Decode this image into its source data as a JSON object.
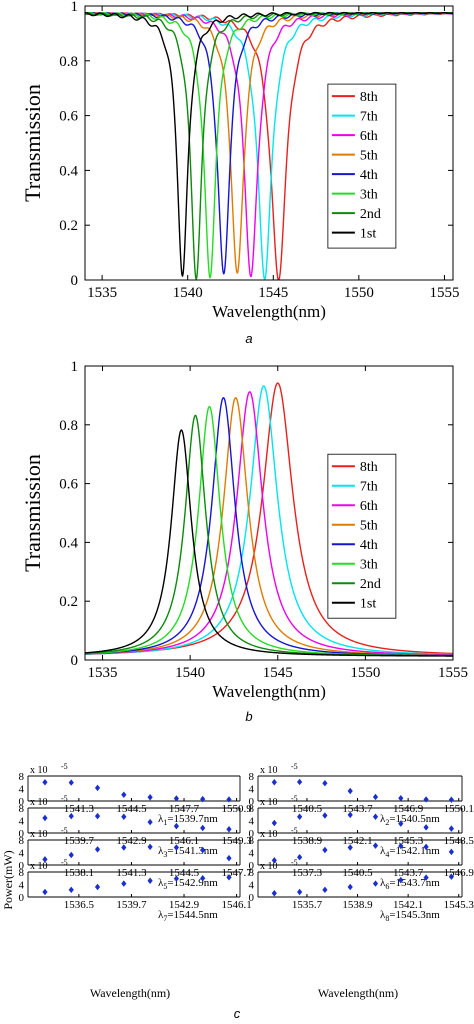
{
  "chart_data": [
    {
      "type": "line",
      "panel_label": "a",
      "xlabel": "Wavelength(nm)",
      "ylabel": "Transmission",
      "xlim": [
        1534,
        1555.5
      ],
      "ylim": [
        0,
        1
      ],
      "xticks": [
        "1535",
        "1540",
        "1545",
        "1550",
        "1555"
      ],
      "yticks": [
        "0",
        "0.2",
        "0.4",
        "0.6",
        "0.8",
        "1"
      ],
      "grid": false,
      "legend_position": "center-right",
      "series": [
        {
          "name": "8th",
          "color": "#e8211c",
          "center": 1545.3,
          "depth": 0.97,
          "width": 0.55
        },
        {
          "name": "7th",
          "color": "#00e5ee",
          "center": 1544.5,
          "depth": 0.96,
          "width": 0.5
        },
        {
          "name": "6th",
          "color": "#ee00ee",
          "center": 1543.7,
          "depth": 0.96,
          "width": 0.48
        },
        {
          "name": "5th",
          "color": "#e07b00",
          "center": 1542.9,
          "depth": 0.96,
          "width": 0.45
        },
        {
          "name": "4th",
          "color": "#1515d0",
          "center": 1542.1,
          "depth": 0.96,
          "width": 0.43
        },
        {
          "name": "3th",
          "color": "#22dd22",
          "center": 1541.3,
          "depth": 0.96,
          "width": 0.42
        },
        {
          "name": "2nd",
          "color": "#0b8a0b",
          "center": 1540.5,
          "depth": 0.96,
          "width": 0.4
        },
        {
          "name": "1st",
          "color": "#000000",
          "center": 1539.7,
          "depth": 0.96,
          "width": 0.38
        }
      ]
    },
    {
      "type": "line",
      "panel_label": "b",
      "xlabel": "Wavelength(nm)",
      "ylabel": "Transmission",
      "xlim": [
        1534,
        1555
      ],
      "ylim": [
        0,
        1
      ],
      "xticks": [
        "1535",
        "1540",
        "1545",
        "1550",
        "1555"
      ],
      "yticks": [
        "0",
        "0.2",
        "0.4",
        "0.6",
        "0.8",
        "1"
      ],
      "grid": false,
      "legend_position": "center-right",
      "series": [
        {
          "name": "8th",
          "color": "#e8211c",
          "center": 1545.0,
          "peak": 0.93,
          "width": 1.05
        },
        {
          "name": "7th",
          "color": "#00e5ee",
          "center": 1544.2,
          "peak": 0.92,
          "width": 0.95
        },
        {
          "name": "6th",
          "color": "#ee00ee",
          "center": 1543.4,
          "peak": 0.9,
          "width": 0.9
        },
        {
          "name": "5th",
          "color": "#e07b00",
          "center": 1542.6,
          "peak": 0.88,
          "width": 0.85
        },
        {
          "name": "4th",
          "color": "#1515d0",
          "center": 1541.9,
          "peak": 0.88,
          "width": 0.8
        },
        {
          "name": "3th",
          "color": "#22dd22",
          "center": 1541.1,
          "peak": 0.85,
          "width": 0.75
        },
        {
          "name": "2nd",
          "color": "#0b8a0b",
          "center": 1540.3,
          "peak": 0.82,
          "width": 0.72
        },
        {
          "name": "1st",
          "color": "#000000",
          "center": 1539.5,
          "peak": 0.77,
          "width": 0.7
        }
      ]
    },
    {
      "type": "scatter",
      "panel_label": "c",
      "ylabel": "Power(mW)",
      "xlabel": "Wavelength(nm)",
      "y_scale_label": "x 10",
      "y_scale_exp": "-5",
      "ylim": [
        0,
        8
      ],
      "yticks": [
        "8",
        "4",
        "0"
      ],
      "marker_color": "#1a2fd0",
      "subplots": [
        {
          "lambda": "λ",
          "sub": "1",
          "value": "=1539.7nm",
          "ticks": [
            "1541.3",
            "1544.5",
            "1547.7",
            "1550.9"
          ],
          "powers": [
            6.0,
            5.9,
            4.2,
            2.0,
            1.2,
            0.8,
            0.6,
            0.5
          ]
        },
        {
          "lambda": "λ",
          "sub": "2",
          "value": "=1540.5nm",
          "ticks": [
            "1540.5",
            "1543.7",
            "1546.9",
            "1550.1"
          ],
          "powers": [
            6.0,
            6.1,
            5.7,
            3.2,
            1.3,
            0.9,
            0.5,
            0.4
          ]
        },
        {
          "lambda": "λ",
          "sub": "3",
          "value": "=1541.3nm",
          "ticks": [
            "1539.7",
            "1542.9",
            "1546.1",
            "1549.3"
          ],
          "powers": [
            4.8,
            5.4,
            5.4,
            5.2,
            3.5,
            2.2,
            1.6,
            1.2
          ]
        },
        {
          "lambda": "λ",
          "sub": "4",
          "value": "=1542.1nm",
          "ticks": [
            "1538.9",
            "1542.1",
            "1545.3",
            "1548.5"
          ],
          "powers": [
            3.2,
            5.2,
            5.6,
            5.8,
            5.2,
            3.0,
            1.8,
            1.4
          ]
        },
        {
          "lambda": "λ",
          "sub": "5",
          "value": "=1542.9nm",
          "ticks": [
            "1538.1",
            "1541.3",
            "1544.5",
            "1547.7"
          ],
          "powers": [
            1.8,
            3.2,
            5.0,
            5.6,
            5.8,
            5.6,
            4.8,
            2.2
          ]
        },
        {
          "lambda": "λ",
          "sub": "6",
          "value": "=1543.7nm",
          "ticks": [
            "1537.3",
            "1540.5",
            "1543.7",
            "1546.9"
          ],
          "powers": [
            1.5,
            2.5,
            4.8,
            5.6,
            6.2,
            6.1,
            5.8,
            4.2
          ]
        },
        {
          "lambda": "λ",
          "sub": "7",
          "value": "=1544.5nm",
          "ticks": [
            "1536.5",
            "1539.7",
            "1542.9",
            "1546.1"
          ],
          "powers": [
            1.6,
            2.3,
            3.2,
            4.3,
            5.2,
            5.9,
            6.0,
            6.3
          ]
        },
        {
          "lambda": "λ",
          "sub": "8",
          "value": "=1545.3nm",
          "ticks": [
            "1535.7",
            "1538.9",
            "1542.1",
            "1545.3"
          ],
          "powers": [
            1.2,
            1.6,
            2.3,
            3.2,
            4.3,
            5.4,
            6.2,
            6.5
          ]
        }
      ]
    }
  ]
}
